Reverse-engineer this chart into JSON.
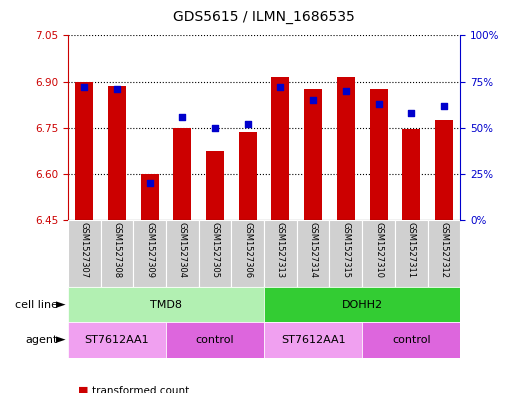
{
  "title": "GDS5615 / ILMN_1686535",
  "samples": [
    "GSM1527307",
    "GSM1527308",
    "GSM1527309",
    "GSM1527304",
    "GSM1527305",
    "GSM1527306",
    "GSM1527313",
    "GSM1527314",
    "GSM1527315",
    "GSM1527310",
    "GSM1527311",
    "GSM1527312"
  ],
  "bar_values": [
    6.9,
    6.885,
    6.6,
    6.75,
    6.675,
    6.735,
    6.915,
    6.875,
    6.915,
    6.875,
    6.745,
    6.775
  ],
  "percentile_values": [
    72,
    71,
    20,
    56,
    50,
    52,
    72,
    65,
    70,
    63,
    58,
    62
  ],
  "ylim_left": [
    6.45,
    7.05
  ],
  "ylim_right": [
    0,
    100
  ],
  "yticks_left": [
    6.45,
    6.6,
    6.75,
    6.9,
    7.05
  ],
  "yticks_right": [
    0,
    25,
    50,
    75,
    100
  ],
  "bar_color": "#cc0000",
  "dot_color": "#0000cc",
  "bar_width": 0.55,
  "cell_line_groups": [
    {
      "label": "TMD8",
      "start": 0,
      "end": 6,
      "color": "#b2f0b2"
    },
    {
      "label": "DOHH2",
      "start": 6,
      "end": 12,
      "color": "#33cc33"
    }
  ],
  "agent_groups": [
    {
      "label": "ST7612AA1",
      "start": 0,
      "end": 3,
      "color": "#f0a0f0"
    },
    {
      "label": "control",
      "start": 3,
      "end": 6,
      "color": "#dd66dd"
    },
    {
      "label": "ST7612AA1",
      "start": 6,
      "end": 9,
      "color": "#f0a0f0"
    },
    {
      "label": "control",
      "start": 9,
      "end": 12,
      "color": "#dd66dd"
    }
  ],
  "grid_linestyle": "dotted",
  "left_axis_color": "#cc0000",
  "right_axis_color": "#0000cc",
  "sample_bg_color": "#d0d0d0",
  "title_fontsize": 10,
  "tick_fontsize": 7.5,
  "sample_fontsize": 6,
  "label_fontsize": 8,
  "legend_fontsize": 7.5
}
